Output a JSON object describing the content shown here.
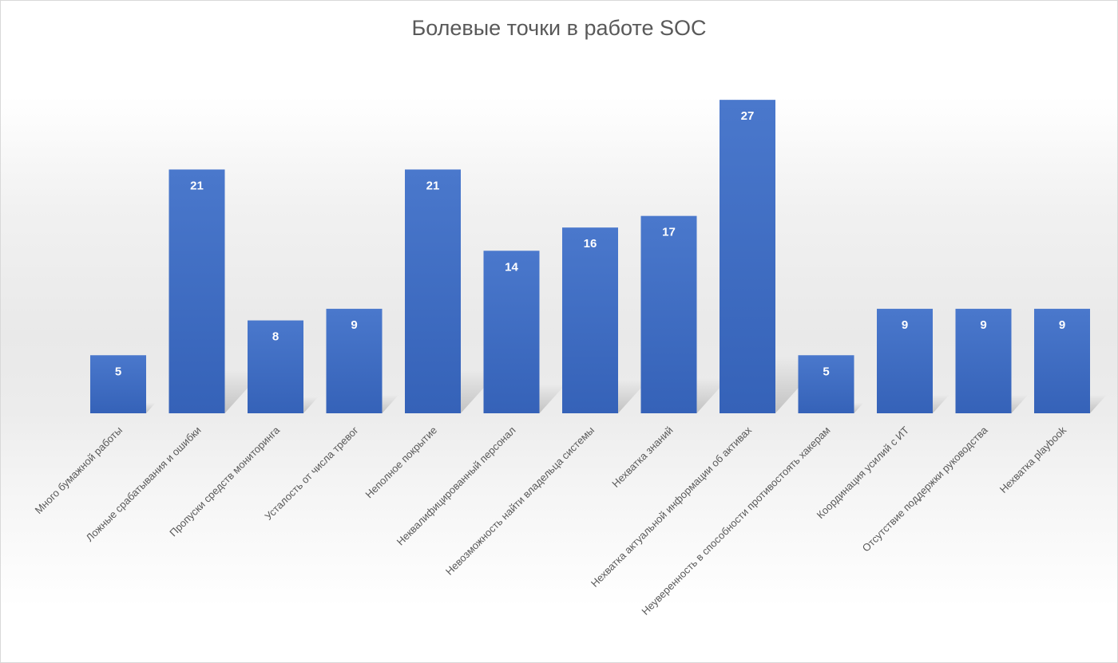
{
  "chart_data": {
    "type": "bar",
    "title": "Болевые точки в работе SOC",
    "xlabel": "",
    "ylabel": "",
    "ylim": [
      0,
      30
    ],
    "grid": false,
    "legend": "none",
    "categories": [
      "Много бумажной работы",
      "Ложные срабатывания и ошибки",
      "Пропуски средств мониторинга",
      "Усталость от числа тревог",
      "Неполное покрытие",
      "Неквалифицированный персонал",
      "Невозможность найти владельца системы",
      "Нехватка знаний",
      "Нехватка актуальной информации об активах",
      "Неуверенность в способности противостоять хакерам",
      "Координация усилий с ИТ",
      "Отсутствие поддержки руководства",
      "Нехватка playbook"
    ],
    "values": [
      5,
      21,
      8,
      9,
      21,
      14,
      16,
      17,
      27,
      5,
      9,
      9,
      9
    ],
    "colors": {
      "bar": "#4472c4",
      "bar_dark": "#2f5597",
      "label": "#ffffff",
      "axis_text": "#595959"
    }
  }
}
